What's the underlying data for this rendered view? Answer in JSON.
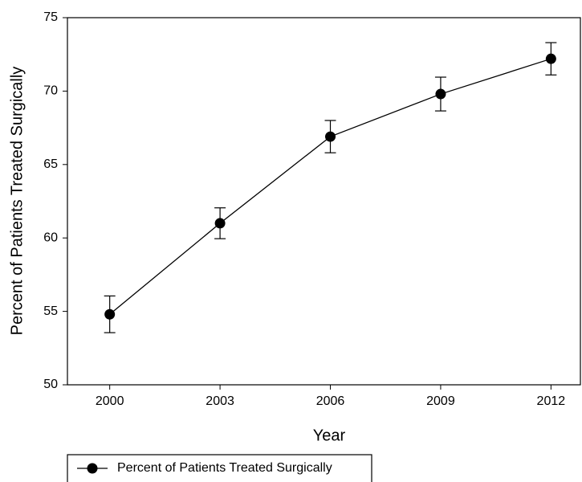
{
  "chart_data": {
    "type": "line",
    "x_label": "Year",
    "y_label": "Percent of Patients Treated Surgically",
    "x": [
      2000,
      2003,
      2006,
      2009,
      2012
    ],
    "series": [
      {
        "name": "Percent of Patients Treated Surgically",
        "color": "#000000",
        "values": [
          54.8,
          61.0,
          66.9,
          69.8,
          72.2
        ],
        "errors": [
          1.25,
          1.05,
          1.1,
          1.15,
          1.1
        ]
      }
    ],
    "xlim": [
      1998.85,
      2012.8
    ],
    "ylim": [
      50,
      75
    ],
    "xticks": [
      2000,
      2003,
      2006,
      2009,
      2012
    ],
    "yticks": [
      50,
      55,
      60,
      65,
      70,
      75
    ],
    "legend": "bottom-left"
  }
}
